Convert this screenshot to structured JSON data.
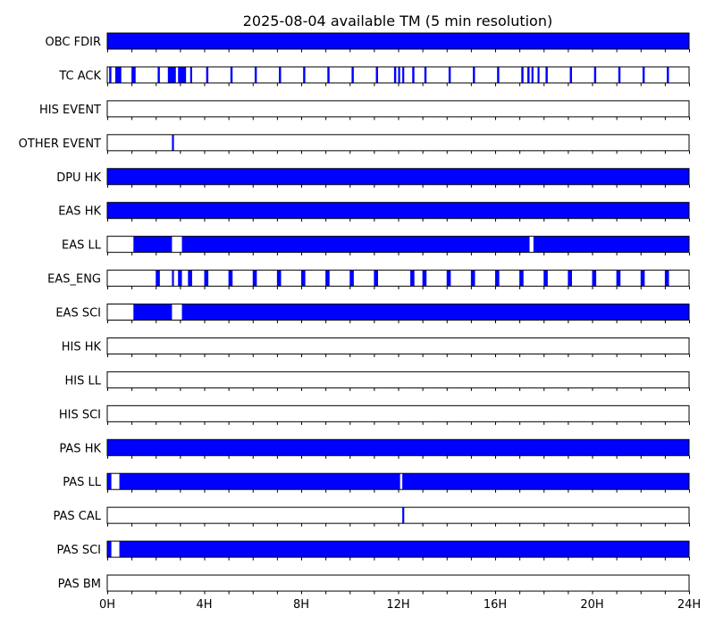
{
  "chart_data": {
    "type": "timeline",
    "title": "2025-08-04 available TM (5 min resolution)",
    "x_unit": "hours",
    "xlim": [
      0,
      24
    ],
    "xticks": [
      0,
      4,
      8,
      12,
      16,
      20,
      24
    ],
    "xtick_labels": [
      "0H",
      "4H",
      "8H",
      "12H",
      "16H",
      "20H",
      "24H"
    ],
    "fill_color": "#0000ff",
    "rows": [
      {
        "label": "OBC FDIR",
        "intervals": [
          [
            0,
            24
          ]
        ]
      },
      {
        "label": "TC ACK",
        "intervals": [
          [
            0.08,
            0.17
          ],
          [
            0.33,
            0.58
          ],
          [
            1.0,
            1.17
          ],
          [
            2.08,
            2.17
          ],
          [
            2.5,
            2.83
          ],
          [
            2.92,
            3.25
          ],
          [
            3.42,
            3.5
          ],
          [
            4.08,
            4.17
          ],
          [
            5.08,
            5.17
          ],
          [
            6.08,
            6.17
          ],
          [
            7.08,
            7.17
          ],
          [
            8.08,
            8.17
          ],
          [
            9.08,
            9.17
          ],
          [
            10.08,
            10.17
          ],
          [
            11.08,
            11.17
          ],
          [
            11.83,
            11.92
          ],
          [
            12.0,
            12.08
          ],
          [
            12.17,
            12.25
          ],
          [
            12.58,
            12.67
          ],
          [
            13.08,
            13.17
          ],
          [
            14.08,
            14.17
          ],
          [
            15.08,
            15.17
          ],
          [
            16.08,
            16.17
          ],
          [
            17.08,
            17.17
          ],
          [
            17.33,
            17.42
          ],
          [
            17.5,
            17.58
          ],
          [
            17.75,
            17.83
          ],
          [
            18.08,
            18.17
          ],
          [
            19.08,
            19.17
          ],
          [
            20.08,
            20.17
          ],
          [
            21.08,
            21.17
          ],
          [
            22.08,
            22.17
          ],
          [
            23.08,
            23.17
          ]
        ]
      },
      {
        "label": "HIS EVENT",
        "intervals": []
      },
      {
        "label": "OTHER EVENT",
        "intervals": [
          [
            2.67,
            2.75
          ]
        ]
      },
      {
        "label": "DPU HK",
        "intervals": [
          [
            0,
            24
          ]
        ]
      },
      {
        "label": "EAS HK",
        "intervals": [
          [
            0,
            24
          ]
        ]
      },
      {
        "label": "EAS LL",
        "intervals": [
          [
            1.08,
            2.67
          ],
          [
            3.08,
            17.42
          ],
          [
            17.58,
            24
          ]
        ]
      },
      {
        "label": "EAS_ENG",
        "intervals": [
          [
            2.0,
            2.17
          ],
          [
            2.67,
            2.75
          ],
          [
            2.92,
            3.08
          ],
          [
            3.33,
            3.5
          ],
          [
            4.0,
            4.17
          ],
          [
            5.0,
            5.17
          ],
          [
            6.0,
            6.17
          ],
          [
            7.0,
            7.17
          ],
          [
            8.0,
            8.17
          ],
          [
            9.0,
            9.17
          ],
          [
            10.0,
            10.17
          ],
          [
            11.0,
            11.17
          ],
          [
            12.5,
            12.67
          ],
          [
            13.0,
            13.17
          ],
          [
            14.0,
            14.17
          ],
          [
            15.0,
            15.17
          ],
          [
            16.0,
            16.17
          ],
          [
            17.0,
            17.17
          ],
          [
            18.0,
            18.17
          ],
          [
            19.0,
            19.17
          ],
          [
            20.0,
            20.17
          ],
          [
            21.0,
            21.17
          ],
          [
            22.0,
            22.17
          ],
          [
            23.0,
            23.17
          ]
        ]
      },
      {
        "label": "EAS SCI",
        "intervals": [
          [
            1.08,
            2.67
          ],
          [
            3.08,
            24
          ]
        ]
      },
      {
        "label": "HIS HK",
        "intervals": []
      },
      {
        "label": "HIS LL",
        "intervals": []
      },
      {
        "label": "HIS SCI",
        "intervals": []
      },
      {
        "label": "PAS HK",
        "intervals": [
          [
            0,
            24
          ]
        ]
      },
      {
        "label": "PAS LL",
        "intervals": [
          [
            0,
            0.17
          ],
          [
            0.5,
            12.08
          ],
          [
            12.17,
            24
          ]
        ]
      },
      {
        "label": "PAS CAL",
        "intervals": [
          [
            12.17,
            12.25
          ]
        ]
      },
      {
        "label": "PAS SCI",
        "intervals": [
          [
            0,
            0.17
          ],
          [
            0.5,
            24
          ]
        ]
      },
      {
        "label": "PAS BM",
        "intervals": []
      }
    ]
  }
}
